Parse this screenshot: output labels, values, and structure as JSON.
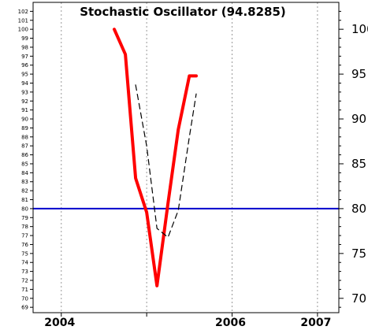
{
  "chart_data": {
    "type": "line",
    "title": "Stochastic Oscillator (94.8285)",
    "xlabel": "",
    "ylabel": "",
    "xlim": [
      2003.67,
      2007.25
    ],
    "ylim": [
      68.4,
      103
    ],
    "x_ticks": [
      {
        "value": 2004,
        "label": "2004"
      },
      {
        "value": 2006,
        "label": "2006"
      },
      {
        "value": 2007,
        "label": "2007"
      }
    ],
    "x_gridlines": [
      2004,
      2005,
      2006,
      2007
    ],
    "y_ticks_left": [
      69,
      70,
      71,
      72,
      73,
      74,
      75,
      76,
      77,
      78,
      79,
      80,
      81,
      82,
      83,
      84,
      85,
      86,
      87,
      88,
      89,
      90,
      91,
      92,
      93,
      94,
      95,
      96,
      97,
      98,
      99,
      100,
      101,
      102
    ],
    "y_ticks_right": [
      70,
      75,
      80,
      85,
      90,
      95,
      100
    ],
    "grid": true,
    "reference_line": {
      "value": 80,
      "color": "#0000cc"
    },
    "series": [
      {
        "style": "solid",
        "color": "#ff0000",
        "x": [
          2004.62,
          2004.75,
          2004.87,
          2005.0,
          2005.12,
          2005.25,
          2005.37,
          2005.5,
          2005.58
        ],
        "y": [
          100,
          97.2,
          83.4,
          79.6,
          71.4,
          80.6,
          88.8,
          94.8,
          94.8
        ]
      },
      {
        "style": "dashed",
        "color": "#000000",
        "x": [
          2004.87,
          2005.0,
          2005.12,
          2005.25,
          2005.37,
          2005.5,
          2005.58
        ],
        "y": [
          93.8,
          87.0,
          77.8,
          76.8,
          79.8,
          88.0,
          92.8
        ]
      }
    ]
  }
}
